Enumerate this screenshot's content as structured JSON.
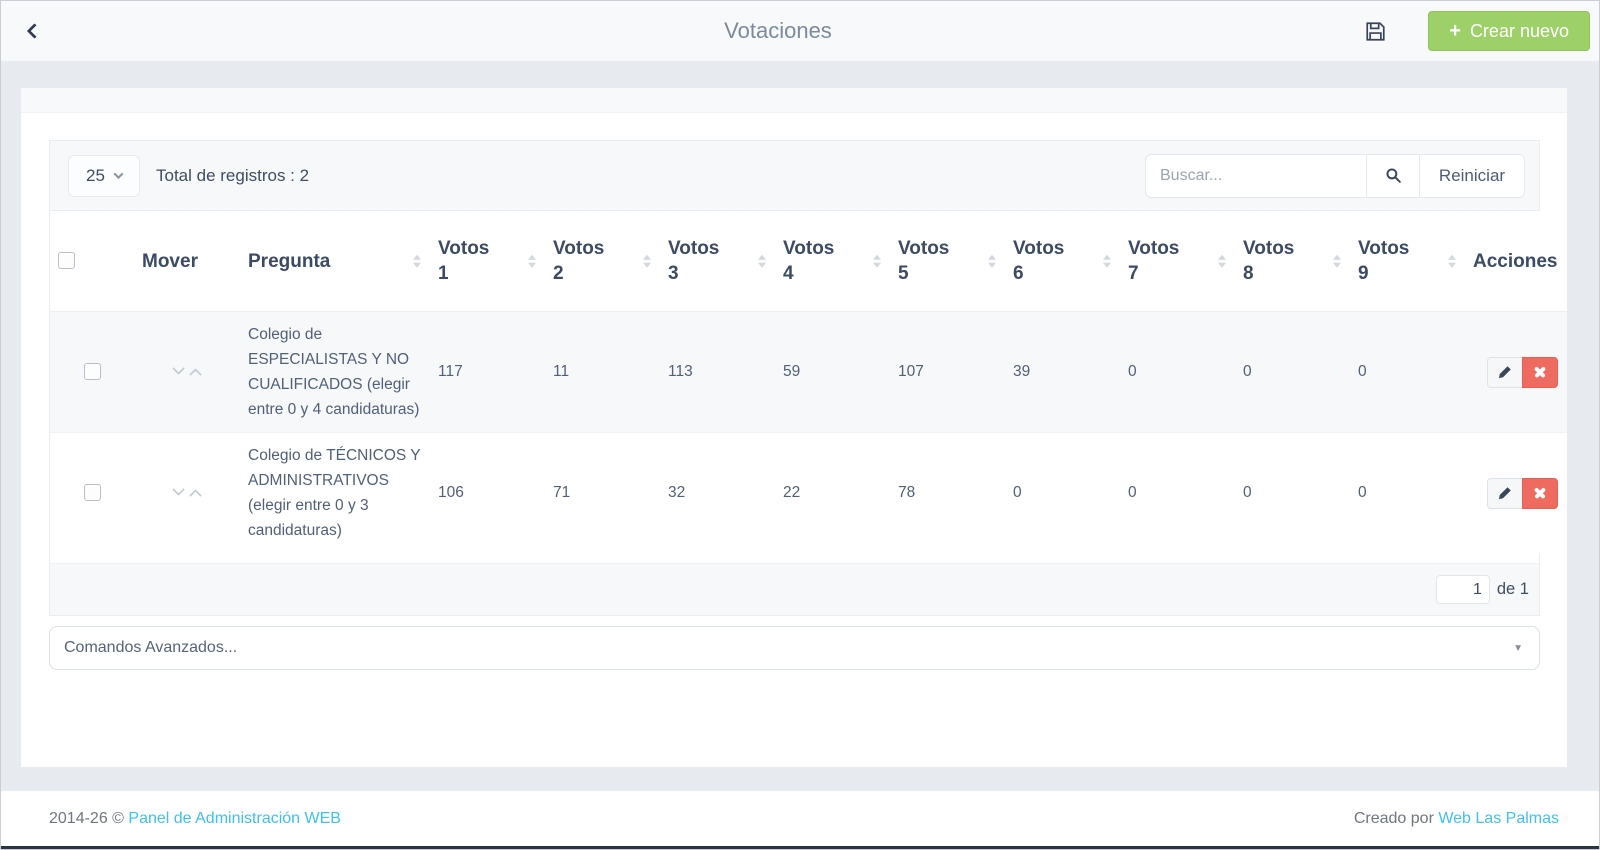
{
  "navbar": {
    "title": "Votaciones",
    "create_plus": "+",
    "create_label": "Crear nuevo"
  },
  "toolbar": {
    "page_size": "25",
    "total": "Total de registros : 2",
    "search_placeholder": "Buscar...",
    "reset": "Reiniciar"
  },
  "table": {
    "columns": [
      {
        "type": "checkbox",
        "label": "",
        "sortable": false
      },
      {
        "label": "Mover",
        "sortable": false
      },
      {
        "label": "Pregunta",
        "sortable": true
      },
      {
        "label": "Votos 1",
        "sortable": true
      },
      {
        "label": "Votos 2",
        "sortable": true
      },
      {
        "label": "Votos 3",
        "sortable": true
      },
      {
        "label": "Votos 4",
        "sortable": true
      },
      {
        "label": "Votos 5",
        "sortable": true
      },
      {
        "label": "Votos 6",
        "sortable": true
      },
      {
        "label": "Votos 7",
        "sortable": true
      },
      {
        "label": "Votos 8",
        "sortable": true
      },
      {
        "label": "Votos 9",
        "sortable": true
      },
      {
        "label": "Acciones",
        "sortable": false
      }
    ],
    "rows": [
      {
        "question": "Colegio de ESPECIALISTAS Y NO CUALIFICADOS (elegir entre 0 y 4 candidaturas)",
        "votes": [
          "117",
          "11",
          "113",
          "59",
          "107",
          "39",
          "0",
          "0",
          "0"
        ]
      },
      {
        "question": "Colegio de TÉCNICOS Y ADMINISTRATIVOS (elegir entre 0 y 3 candidaturas)",
        "votes": [
          "106",
          "71",
          "32",
          "22",
          "78",
          "0",
          "0",
          "0",
          "0"
        ]
      }
    ]
  },
  "pagination": {
    "current": "1",
    "of": "de 1"
  },
  "advanced_commands": {
    "label": "Comandos Avanzados..."
  },
  "footer": {
    "copyright": "2014-26 ©",
    "admin_link": "Panel de Administración WEB",
    "credit": "Creado por",
    "credit_link": "Web Las Palmas"
  },
  "colors": {
    "accent_green": "#9ed069",
    "danger_red": "#ee6b60",
    "link_cyan": "#3fc0ed",
    "heading_navy": "#3c4a63",
    "page_background": "#e7eaee"
  }
}
